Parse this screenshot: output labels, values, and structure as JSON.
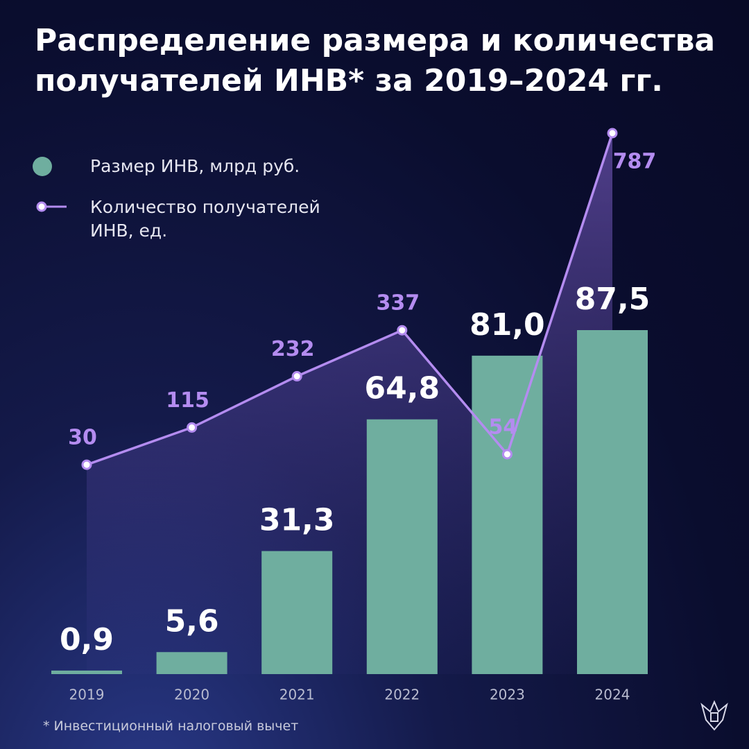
{
  "chart_data": {
    "type": "bar-line",
    "title": "Распределение размера и количества получателей ИНВ* за 2019–2024 гг.",
    "footnote": "* Инвестиционный налоговый вычет",
    "categories": [
      "2019",
      "2020",
      "2021",
      "2022",
      "2023",
      "2024"
    ],
    "series": [
      {
        "name": "Размер ИНВ, млрд руб.",
        "type": "bar",
        "color": "#6fae9f",
        "values": [
          0.9,
          5.6,
          31.3,
          64.8,
          81.0,
          87.5
        ],
        "value_labels": [
          "0,9",
          "5,6",
          "31,3",
          "64,8",
          "81,0",
          "87,5"
        ]
      },
      {
        "name": "Количество получателей ИНВ, ед.",
        "type": "line",
        "color": "#b48cf0",
        "axis": "y2",
        "values": [
          30,
          115,
          232,
          337,
          54,
          787
        ]
      }
    ],
    "ylim": [
      0,
      137.6
    ],
    "y2lim": [
      -448,
      787
    ]
  }
}
